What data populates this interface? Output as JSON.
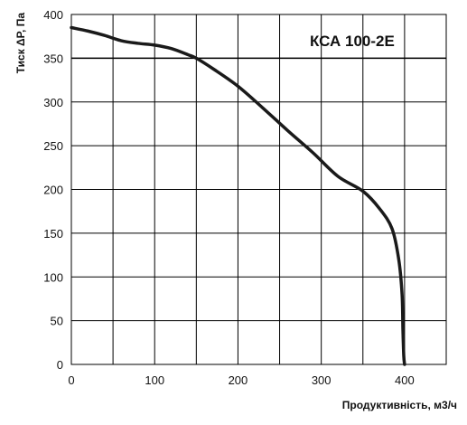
{
  "chart_data": {
    "type": "line",
    "title": "КСА 100-2E",
    "xlabel": "Продуктивність, м3/ч",
    "ylabel": "Тиск ΔР, Па",
    "xlim": [
      0,
      450
    ],
    "ylim": [
      0,
      400
    ],
    "x_ticks": [
      "0",
      "100",
      "200",
      "300",
      "400"
    ],
    "y_ticks": [
      "0",
      "50",
      "100",
      "150",
      "200",
      "250",
      "300",
      "350",
      "400"
    ],
    "grid": true,
    "reference_line_y": 350,
    "colors": {
      "line": "#1a1a1a",
      "grid": "#000000",
      "background": "#ffffff"
    },
    "series": [
      {
        "x": [
          0,
          20,
          40,
          60,
          80,
          100,
          120,
          140,
          150,
          170,
          200,
          230,
          260,
          290,
          320,
          350,
          370,
          385,
          393,
          397,
          398,
          399,
          400
        ],
        "y": [
          385,
          381,
          376,
          370,
          367,
          365,
          361,
          354,
          350,
          338,
          318,
          293,
          267,
          242,
          215,
          198,
          178,
          155,
          120,
          80,
          40,
          10,
          0
        ]
      }
    ]
  }
}
